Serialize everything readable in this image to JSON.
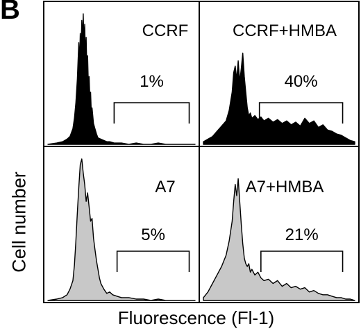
{
  "figure": {
    "panel_letter": "B",
    "ylabel": "Cell number",
    "xlabel": "Fluorescence (Fl-1)"
  },
  "chart_data": [
    {
      "type": "area",
      "position": "top-left",
      "title": "CCRF",
      "fill": "#000000",
      "gate_label": "1%",
      "gate": [
        0.45,
        0.96
      ],
      "x": [
        0.0,
        0.06,
        0.1,
        0.13,
        0.15,
        0.17,
        0.18,
        0.19,
        0.2,
        0.205,
        0.21,
        0.215,
        0.22,
        0.225,
        0.23,
        0.235,
        0.24,
        0.245,
        0.25,
        0.255,
        0.26,
        0.265,
        0.27,
        0.275,
        0.28,
        0.285,
        0.29,
        0.295,
        0.3,
        0.31,
        0.32,
        0.33,
        0.34,
        0.36,
        0.38,
        0.4,
        0.42,
        0.45,
        0.5,
        0.55,
        0.6,
        0.65,
        0.7,
        0.75,
        0.8,
        0.85,
        0.9,
        0.95,
        1.0
      ],
      "y": [
        0.0,
        0.01,
        0.02,
        0.04,
        0.06,
        0.12,
        0.2,
        0.32,
        0.5,
        0.65,
        0.78,
        0.62,
        0.85,
        0.7,
        0.95,
        0.8,
        1.0,
        0.78,
        0.92,
        0.66,
        0.82,
        0.55,
        0.68,
        0.45,
        0.52,
        0.36,
        0.4,
        0.25,
        0.28,
        0.16,
        0.12,
        0.08,
        0.05,
        0.04,
        0.03,
        0.02,
        0.02,
        0.01,
        0.01,
        0.0,
        0.01,
        0.0,
        0.0,
        0.01,
        0.0,
        0.0,
        0.0,
        0.0,
        0.0
      ]
    },
    {
      "type": "area",
      "position": "top-right",
      "title": "CCRF+HMBA",
      "fill": "#000000",
      "gate_label": "40%",
      "gate": [
        0.37,
        0.92
      ],
      "x": [
        0.0,
        0.03,
        0.06,
        0.09,
        0.12,
        0.15,
        0.17,
        0.19,
        0.2,
        0.21,
        0.22,
        0.23,
        0.24,
        0.25,
        0.26,
        0.27,
        0.28,
        0.29,
        0.3,
        0.31,
        0.32,
        0.34,
        0.36,
        0.38,
        0.4,
        0.43,
        0.46,
        0.49,
        0.52,
        0.55,
        0.58,
        0.61,
        0.64,
        0.67,
        0.7,
        0.73,
        0.76,
        0.79,
        0.82,
        0.85,
        0.88,
        0.91,
        0.94,
        0.97,
        1.0
      ],
      "y": [
        0.02,
        0.04,
        0.06,
        0.1,
        0.14,
        0.18,
        0.26,
        0.4,
        0.55,
        0.6,
        0.5,
        0.64,
        0.48,
        0.58,
        0.7,
        0.52,
        0.4,
        0.28,
        0.22,
        0.24,
        0.2,
        0.22,
        0.19,
        0.21,
        0.18,
        0.2,
        0.17,
        0.19,
        0.16,
        0.18,
        0.15,
        0.17,
        0.14,
        0.2,
        0.16,
        0.18,
        0.13,
        0.15,
        0.11,
        0.1,
        0.08,
        0.07,
        0.05,
        0.03,
        0.02
      ]
    },
    {
      "type": "area",
      "position": "bottom-left",
      "title": "A7",
      "fill": "#c8c8c8",
      "gate_label": "5%",
      "gate": [
        0.47,
        0.96
      ],
      "x": [
        0.0,
        0.06,
        0.1,
        0.13,
        0.15,
        0.17,
        0.18,
        0.19,
        0.2,
        0.21,
        0.22,
        0.23,
        0.24,
        0.25,
        0.26,
        0.27,
        0.28,
        0.29,
        0.3,
        0.31,
        0.32,
        0.33,
        0.34,
        0.35,
        0.36,
        0.37,
        0.38,
        0.4,
        0.42,
        0.44,
        0.47,
        0.5,
        0.55,
        0.6,
        0.65,
        0.7,
        0.75,
        0.8,
        0.85,
        0.9,
        0.95,
        1.0
      ],
      "y": [
        0.0,
        0.01,
        0.02,
        0.04,
        0.08,
        0.14,
        0.25,
        0.42,
        0.62,
        0.8,
        0.96,
        1.0,
        0.9,
        0.82,
        0.7,
        0.76,
        0.66,
        0.56,
        0.58,
        0.44,
        0.36,
        0.28,
        0.22,
        0.16,
        0.12,
        0.1,
        0.08,
        0.05,
        0.06,
        0.04,
        0.03,
        0.02,
        0.02,
        0.01,
        0.01,
        0.0,
        0.01,
        0.0,
        0.0,
        0.0,
        0.0,
        0.0
      ]
    },
    {
      "type": "area",
      "position": "bottom-right",
      "title": "A7+HMBA",
      "fill": "#c8c8c8",
      "gate_label": "21%",
      "gate": [
        0.38,
        0.92
      ],
      "x": [
        0.0,
        0.03,
        0.06,
        0.09,
        0.12,
        0.15,
        0.17,
        0.19,
        0.2,
        0.21,
        0.22,
        0.23,
        0.24,
        0.25,
        0.26,
        0.27,
        0.28,
        0.29,
        0.3,
        0.31,
        0.32,
        0.34,
        0.36,
        0.38,
        0.4,
        0.43,
        0.46,
        0.49,
        0.52,
        0.55,
        0.58,
        0.61,
        0.64,
        0.67,
        0.7,
        0.73,
        0.76,
        0.79,
        0.82,
        0.85,
        0.88,
        0.91,
        0.94,
        0.97,
        1.0
      ],
      "y": [
        0.02,
        0.06,
        0.12,
        0.18,
        0.24,
        0.32,
        0.42,
        0.56,
        0.7,
        0.82,
        0.74,
        0.86,
        0.7,
        0.54,
        0.4,
        0.3,
        0.26,
        0.24,
        0.26,
        0.2,
        0.22,
        0.18,
        0.2,
        0.16,
        0.14,
        0.15,
        0.12,
        0.14,
        0.1,
        0.12,
        0.09,
        0.1,
        0.08,
        0.09,
        0.06,
        0.07,
        0.05,
        0.04,
        0.04,
        0.03,
        0.02,
        0.02,
        0.01,
        0.01,
        0.0
      ]
    }
  ]
}
